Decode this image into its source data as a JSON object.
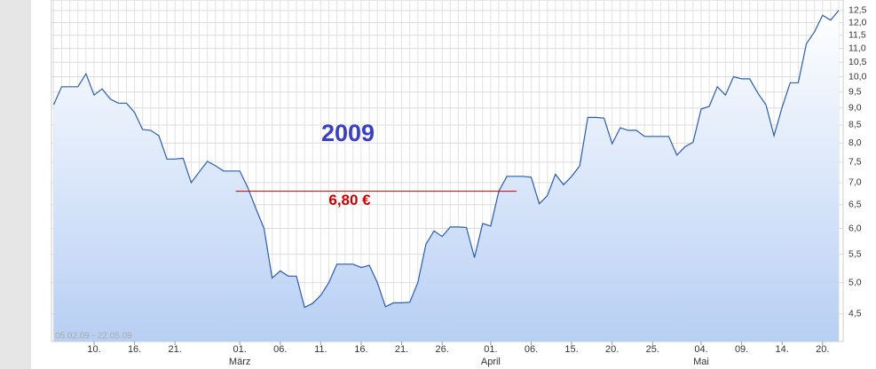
{
  "chart_data": {
    "type": "line",
    "title": "2009",
    "date_range": "05.02.09 - 22.05.09",
    "color": "#2a5db0",
    "fill_color": "#b7cff4",
    "log_scale": true,
    "grid": true,
    "y_axis_side": "right",
    "categories": [
      null,
      null,
      null,
      null,
      null,
      "10.",
      null,
      null,
      null,
      null,
      "16.",
      null,
      null,
      null,
      null,
      "21.",
      null,
      null,
      null,
      null,
      null,
      null,
      null,
      "01.",
      null,
      null,
      null,
      null,
      "06.",
      null,
      null,
      null,
      null,
      "11.",
      null,
      null,
      null,
      null,
      "16.",
      null,
      null,
      null,
      null,
      "21.",
      null,
      null,
      null,
      null,
      "26.",
      null,
      null,
      null,
      null,
      null,
      "01.",
      null,
      null,
      null,
      null,
      "06.",
      null,
      null,
      null,
      null,
      "15.",
      null,
      null,
      null,
      null,
      "20.",
      null,
      null,
      null,
      null,
      "25.",
      null,
      null,
      null,
      null,
      null,
      "04.",
      null,
      null,
      null,
      null,
      "09.",
      null,
      null,
      null,
      null,
      "14.",
      null,
      null,
      null,
      null,
      "20.",
      null,
      null
    ],
    "category_months": [
      null,
      null,
      null,
      null,
      null,
      null,
      null,
      null,
      null,
      null,
      null,
      null,
      null,
      null,
      null,
      null,
      null,
      null,
      null,
      null,
      null,
      null,
      null,
      "März",
      null,
      null,
      null,
      null,
      null,
      null,
      null,
      null,
      null,
      null,
      null,
      null,
      null,
      null,
      null,
      null,
      null,
      null,
      null,
      null,
      null,
      null,
      null,
      null,
      null,
      null,
      null,
      null,
      null,
      null,
      "April",
      null,
      null,
      null,
      null,
      null,
      null,
      null,
      null,
      null,
      null,
      null,
      null,
      null,
      null,
      null,
      null,
      null,
      null,
      null,
      null,
      null,
      null,
      null,
      null,
      null,
      "Mai",
      null,
      null,
      null,
      null,
      null,
      null,
      null,
      null,
      null,
      null,
      null,
      null,
      null,
      null,
      null,
      null,
      null
    ],
    "values": [
      9.1,
      9.67,
      9.67,
      9.67,
      10.1,
      9.4,
      9.6,
      9.28,
      9.15,
      9.15,
      8.87,
      8.37,
      8.35,
      8.2,
      7.58,
      7.58,
      7.6,
      7.0,
      7.26,
      7.52,
      7.41,
      7.28,
      7.28,
      7.28,
      6.88,
      6.41,
      6.0,
      5.08,
      5.2,
      5.11,
      5.11,
      4.6,
      4.66,
      4.79,
      5.0,
      5.32,
      5.32,
      5.32,
      5.26,
      5.3,
      5.0,
      4.61,
      4.67,
      4.67,
      4.68,
      5.0,
      5.69,
      5.95,
      5.84,
      6.03,
      6.03,
      6.02,
      5.44,
      6.1,
      6.05,
      6.8,
      7.15,
      7.15,
      7.15,
      7.13,
      6.52,
      6.7,
      7.2,
      6.95,
      7.15,
      7.41,
      8.72,
      8.72,
      8.7,
      7.98,
      8.42,
      8.35,
      8.35,
      8.18,
      8.18,
      8.18,
      8.18,
      7.68,
      7.9,
      8.02,
      8.97,
      9.05,
      9.67,
      9.4,
      10.0,
      9.93,
      9.93,
      9.47,
      9.1,
      8.2,
      9.02,
      9.8,
      9.8,
      11.18,
      11.63,
      12.3,
      12.1,
      12.5
    ],
    "reference_line": {
      "value": 6.8,
      "label": "6,80 €",
      "color": "#cc0000"
    },
    "ylim": [
      4.1,
      12.95
    ],
    "yticks": [
      {
        "value": 4.5,
        "label": "4,5"
      },
      {
        "value": 5,
        "label": "5,0"
      },
      {
        "value": 5.5,
        "label": "5,5"
      },
      {
        "value": 6,
        "label": "6,0"
      },
      {
        "value": 6.5,
        "label": "6,5"
      },
      {
        "value": 7,
        "label": "7,0"
      },
      {
        "value": 7.5,
        "label": "7,5"
      },
      {
        "value": 8,
        "label": "8,0"
      },
      {
        "value": 8.5,
        "label": "8,5"
      },
      {
        "value": 9,
        "label": "9,0"
      },
      {
        "value": 9.5,
        "label": "9,5"
      },
      {
        "value": 10,
        "label": "10,0"
      },
      {
        "value": 10.5,
        "label": "10,5"
      },
      {
        "value": 11,
        "label": "11,0"
      },
      {
        "value": 11.5,
        "label": "11,5"
      },
      {
        "value": 12,
        "label": "12,0"
      },
      {
        "value": 12.5,
        "label": "12,5"
      }
    ]
  }
}
